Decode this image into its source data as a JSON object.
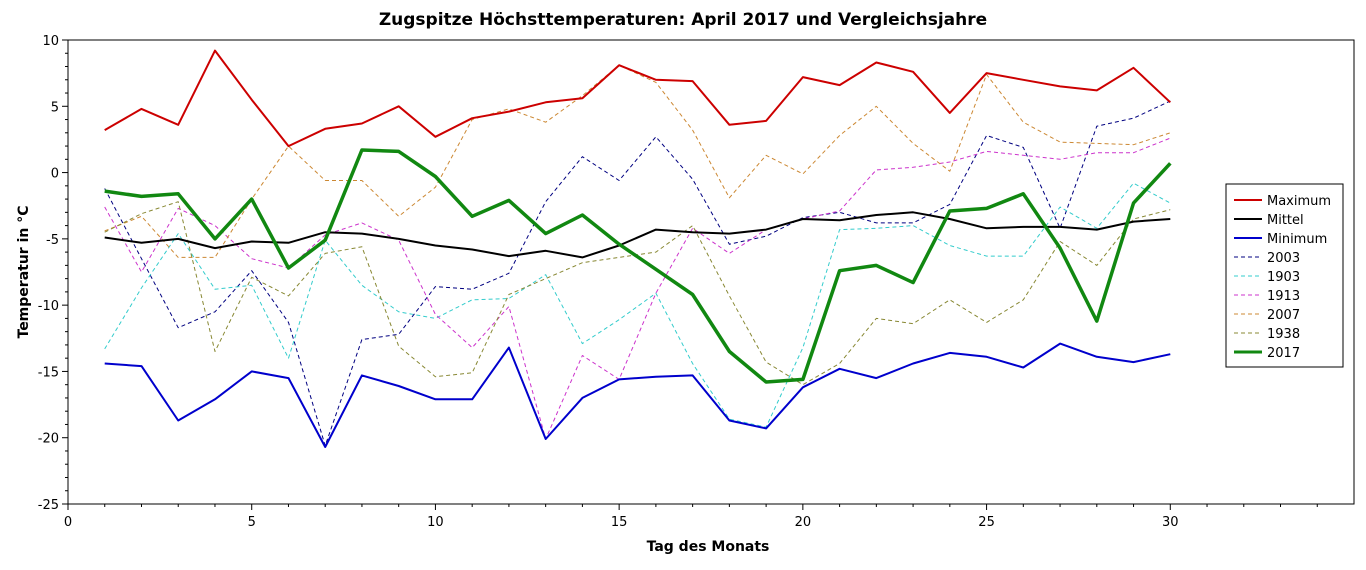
{
  "chart_data": {
    "type": "line",
    "title": "Zugspitze Höchsttemperaturen: April 2017 und Vergleichsjahre",
    "xlabel": "Tag des Monats",
    "ylabel": "Temperatur in °C",
    "xlim": [
      0,
      35
    ],
    "ylim": [
      -25,
      10
    ],
    "xticks": [
      0,
      5,
      10,
      15,
      20,
      25,
      30
    ],
    "yticks": [
      10,
      5,
      0,
      -5,
      -10,
      -15,
      -20,
      -25
    ],
    "grid": false,
    "legend_position": "right",
    "x": [
      1,
      2,
      3,
      4,
      5,
      6,
      7,
      8,
      9,
      10,
      11,
      12,
      13,
      14,
      15,
      16,
      17,
      18,
      19,
      20,
      21,
      22,
      23,
      24,
      25,
      26,
      27,
      28,
      29,
      30
    ],
    "series": [
      {
        "name": "Maximum",
        "color": "#cc0000",
        "width": 2,
        "dash": "",
        "values": [
          3.2,
          4.8,
          3.6,
          9.2,
          5.5,
          2.0,
          3.3,
          3.7,
          5.0,
          2.7,
          4.1,
          4.6,
          5.3,
          5.6,
          8.1,
          7.0,
          6.9,
          3.6,
          3.9,
          7.2,
          6.6,
          8.3,
          7.6,
          4.5,
          7.5,
          7.0,
          6.5,
          6.2,
          7.9,
          5.3
        ]
      },
      {
        "name": "Mittel",
        "color": "#000000",
        "width": 2,
        "dash": "",
        "values": [
          -4.9,
          -5.3,
          -5.0,
          -5.7,
          -5.2,
          -5.3,
          -4.5,
          -4.6,
          -5.0,
          -5.5,
          -5.8,
          -6.3,
          -5.9,
          -6.4,
          -5.5,
          -4.3,
          -4.5,
          -4.6,
          -4.3,
          -3.5,
          -3.6,
          -3.2,
          -3.0,
          -3.5,
          -4.2,
          -4.1,
          -4.1,
          -4.3,
          -3.7,
          -3.5
        ]
      },
      {
        "name": "Minimum",
        "color": "#0000cc",
        "width": 2,
        "dash": "",
        "values": [
          -14.4,
          -14.6,
          -18.7,
          -17.1,
          -15.0,
          -15.5,
          -20.7,
          -15.3,
          -16.1,
          -17.1,
          -17.1,
          -13.2,
          -20.1,
          -17.0,
          -15.6,
          -15.4,
          -15.3,
          -18.7,
          -19.3,
          -16.2,
          -14.8,
          -15.5,
          -14.4,
          -13.6,
          -13.9,
          -14.7,
          -12.9,
          -13.9,
          -14.3,
          -13.7
        ]
      },
      {
        "name": "2003",
        "color": "#000080",
        "width": 1,
        "dash": "4,3",
        "values": [
          -1.2,
          -6.5,
          -11.7,
          -10.5,
          -7.4,
          -11.3,
          -20.6,
          -12.6,
          -12.2,
          -8.6,
          -8.8,
          -7.6,
          -2.2,
          1.2,
          -0.6,
          2.7,
          -0.5,
          -5.4,
          -4.8,
          -3.4,
          -3.0,
          -3.8,
          -3.8,
          -2.4,
          2.8,
          1.9,
          -4.2,
          3.5,
          4.1,
          5.4
        ]
      },
      {
        "name": "1903",
        "color": "#33cccc",
        "width": 1,
        "dash": "4,3",
        "values": [
          -13.3,
          -8.7,
          -4.6,
          -8.8,
          -8.5,
          -14.0,
          -5.1,
          -8.5,
          -10.5,
          -11.0,
          -9.6,
          -9.5,
          -7.7,
          -12.9,
          -11.1,
          -9.1,
          -14.4,
          -18.6,
          -19.2,
          -13.2,
          -4.3,
          -4.2,
          -4.0,
          -5.5,
          -6.3,
          -6.3,
          -2.6,
          -4.2,
          -0.8,
          -2.3
        ]
      },
      {
        "name": "1913",
        "color": "#cc33cc",
        "width": 1,
        "dash": "4,3",
        "values": [
          -2.6,
          -7.5,
          -2.7,
          -4.0,
          -6.5,
          -7.2,
          -4.7,
          -3.8,
          -5.1,
          -10.7,
          -13.2,
          -10.1,
          -20.1,
          -13.8,
          -15.6,
          -9.1,
          -4.2,
          -6.1,
          -4.3,
          -3.5,
          -2.9,
          0.2,
          0.4,
          0.8,
          1.6,
          1.3,
          1.0,
          1.5,
          1.5,
          2.6
        ]
      },
      {
        "name": "2007",
        "color": "#cc8833",
        "width": 1,
        "dash": "4,3",
        "values": [
          -4.4,
          -3.3,
          -6.4,
          -6.4,
          -2.0,
          2.0,
          -0.6,
          -0.6,
          -3.3,
          -1.1,
          4.0,
          4.8,
          3.8,
          5.8,
          8.1,
          6.8,
          3.2,
          -1.9,
          1.3,
          -0.1,
          2.8,
          5.0,
          2.2,
          0.1,
          7.4,
          3.8,
          2.3,
          2.2,
          2.1,
          3.0
        ]
      },
      {
        "name": "1938",
        "color": "#888833",
        "width": 1,
        "dash": "4,3",
        "values": [
          -4.5,
          -3.1,
          -2.2,
          -13.5,
          -7.9,
          -9.3,
          -6.1,
          -5.6,
          -13.1,
          -15.4,
          -15.1,
          -9.2,
          -8.0,
          -6.8,
          -6.4,
          -6.0,
          -4.0,
          -9.3,
          -14.3,
          -16.0,
          -14.4,
          -11.0,
          -11.4,
          -9.6,
          -11.3,
          -9.6,
          -5.2,
          -7.0,
          -3.5,
          -2.8
        ]
      },
      {
        "name": "2017",
        "color": "#118811",
        "width": 3.5,
        "dash": "",
        "values": [
          -1.4,
          -1.8,
          -1.6,
          -5.0,
          -2.0,
          -7.2,
          -5.1,
          1.7,
          1.6,
          -0.3,
          -3.3,
          -2.1,
          -4.6,
          -3.2,
          -5.4,
          -7.3,
          -9.2,
          -13.5,
          -15.8,
          -15.6,
          -7.4,
          -7.0,
          -8.3,
          -2.9,
          -2.7,
          -1.6,
          -5.7,
          -11.2,
          -2.3,
          0.7
        ]
      }
    ]
  }
}
